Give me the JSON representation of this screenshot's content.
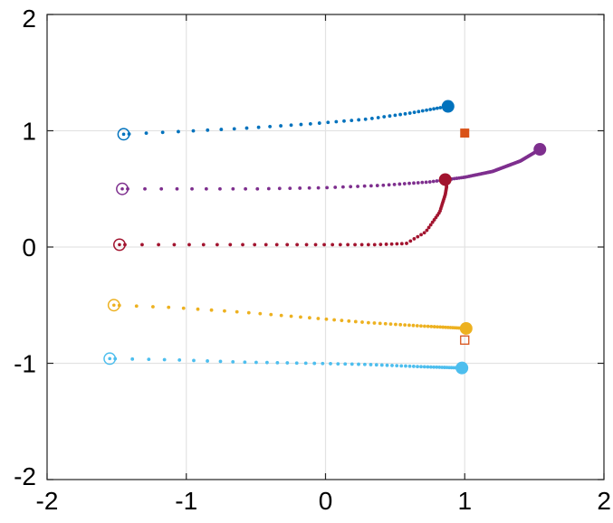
{
  "chart_data": {
    "type": "scatter",
    "title": "",
    "xlabel": "",
    "ylabel": "",
    "xlim": [
      -2,
      2
    ],
    "ylim": [
      -2,
      2
    ],
    "grid": true,
    "x_ticks": [
      -2,
      -1,
      0,
      1,
      2
    ],
    "y_ticks": [
      -2,
      -1,
      0,
      1,
      2
    ],
    "x_tick_labels": [
      "-2",
      "-1",
      "0",
      "1",
      "2"
    ],
    "y_tick_labels": [
      "-2",
      "-1",
      "0",
      "1",
      "2"
    ],
    "series": [
      {
        "color": "#0072BD",
        "start": [
          -1.45,
          0.97
        ],
        "end": [
          0.88,
          1.21
        ],
        "path": [
          [
            -1.45,
            0.97
          ],
          [
            -1.1,
            0.99
          ],
          [
            -0.6,
            1.02
          ],
          [
            -0.1,
            1.06
          ],
          [
            0.3,
            1.1
          ],
          [
            0.6,
            1.15
          ],
          [
            0.88,
            1.21
          ]
        ]
      },
      {
        "color": "#7E2F8E",
        "start": [
          -1.46,
          0.5
        ],
        "end": [
          1.54,
          0.84
        ],
        "path": [
          [
            -1.46,
            0.5
          ],
          [
            -1.0,
            0.5
          ],
          [
            -0.5,
            0.5
          ],
          [
            0.0,
            0.51
          ],
          [
            0.4,
            0.53
          ],
          [
            0.75,
            0.56
          ],
          [
            1.0,
            0.6
          ],
          [
            1.2,
            0.65
          ],
          [
            1.4,
            0.74
          ],
          [
            1.54,
            0.84
          ]
        ]
      },
      {
        "color": "#A2142F",
        "start": [
          -1.48,
          0.02
        ],
        "end": [
          0.86,
          0.58
        ],
        "path": [
          [
            -1.48,
            0.02
          ],
          [
            -1.0,
            0.02
          ],
          [
            -0.5,
            0.02
          ],
          [
            0.0,
            0.02
          ],
          [
            0.35,
            0.02
          ],
          [
            0.58,
            0.03
          ],
          [
            0.72,
            0.13
          ],
          [
            0.82,
            0.3
          ],
          [
            0.86,
            0.45
          ],
          [
            0.87,
            0.52
          ],
          [
            0.86,
            0.58
          ]
        ]
      },
      {
        "color": "#EDB120",
        "start": [
          -1.52,
          -0.5
        ],
        "end": [
          1.01,
          -0.7
        ],
        "path": [
          [
            -1.52,
            -0.5
          ],
          [
            -1.1,
            -0.52
          ],
          [
            -0.6,
            -0.56
          ],
          [
            -0.1,
            -0.61
          ],
          [
            0.3,
            -0.65
          ],
          [
            0.7,
            -0.68
          ],
          [
            1.01,
            -0.7
          ]
        ]
      },
      {
        "color": "#4DBEEE",
        "start": [
          -1.55,
          -0.96
        ],
        "end": [
          0.98,
          -1.04
        ],
        "path": [
          [
            -1.55,
            -0.96
          ],
          [
            -1.1,
            -0.97
          ],
          [
            -0.6,
            -0.99
          ],
          [
            -0.1,
            -1.0
          ],
          [
            0.3,
            -1.01
          ],
          [
            0.7,
            -1.03
          ],
          [
            0.98,
            -1.04
          ]
        ]
      }
    ],
    "markers": [
      {
        "shape": "square-filled",
        "color": "#D95319",
        "x": 1.0,
        "y": 0.98
      },
      {
        "shape": "square-open",
        "color": "#D95319",
        "x": 1.0,
        "y": -0.8
      }
    ]
  }
}
